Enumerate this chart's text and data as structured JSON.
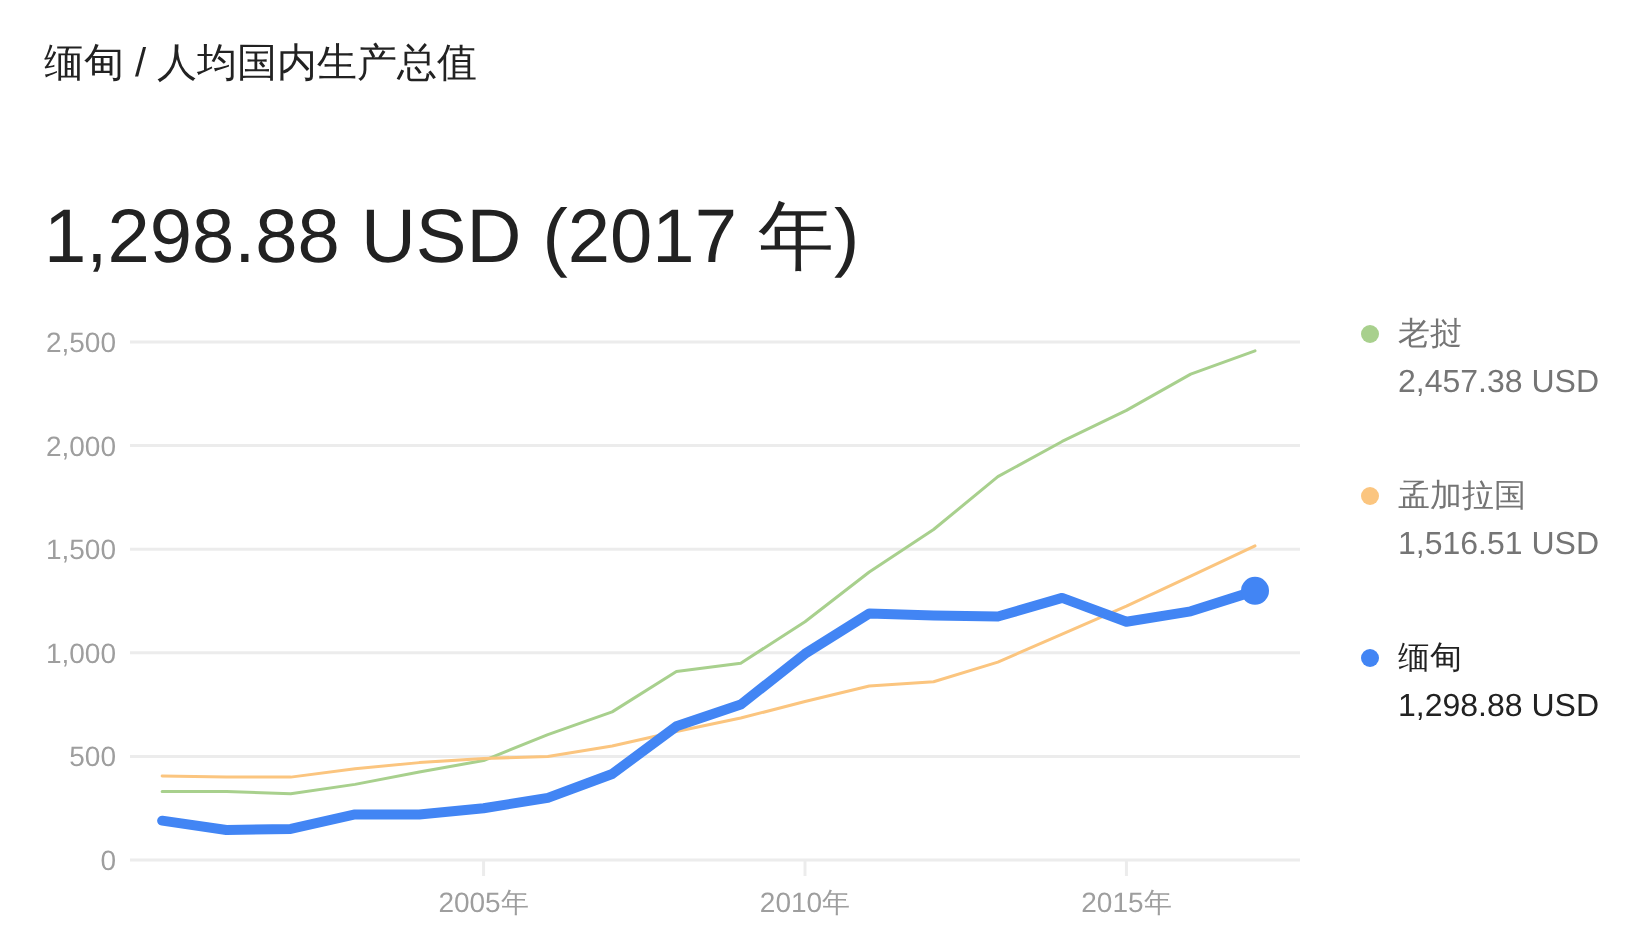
{
  "chart_data": {
    "type": "line",
    "title": "缅甸 / 人均国内生产总值",
    "subtitle": "1,298.88 USD (2017 年)",
    "x": [
      2000,
      2001,
      2002,
      2003,
      2004,
      2005,
      2006,
      2007,
      2008,
      2009,
      2010,
      2011,
      2012,
      2013,
      2014,
      2015,
      2016,
      2017
    ],
    "series": [
      {
        "name": "老挝",
        "color": "#a8d08d",
        "values": [
          330,
          330,
          320,
          365,
          425,
          480,
          605,
          715,
          910,
          950,
          1150,
          1390,
          1595,
          1850,
          2020,
          2170,
          2345,
          2457.38
        ]
      },
      {
        "name": "孟加拉国",
        "color": "#fbc57f",
        "values": [
          405,
          400,
          400,
          440,
          470,
          490,
          500,
          550,
          620,
          685,
          765,
          840,
          860,
          955,
          1090,
          1225,
          1370,
          1516.51
        ]
      },
      {
        "name": "缅甸",
        "color": "#4285f4",
        "values": [
          190,
          145,
          150,
          220,
          220,
          250,
          300,
          415,
          645,
          750,
          995,
          1190,
          1180,
          1175,
          1265,
          1150,
          1200,
          1298.88
        ]
      },
      {
        "type": "scatter",
        "color": "#4285f4",
        "x": [
          2017
        ],
        "values": [
          1298.88
        ]
      }
    ],
    "annotations": [
      "2,457.38 USD",
      "1,516.51 USD",
      "1,298.88 USD"
    ],
    "xlim": [
      1999.5,
      2017.7
    ],
    "ylim": [
      0,
      2500
    ],
    "xticks": [
      {
        "value": 2005,
        "label": "2005年"
      },
      {
        "value": 2010,
        "label": "2010年"
      },
      {
        "value": 2015,
        "label": "2015年"
      }
    ],
    "yticks": [
      0,
      500,
      {
        "value": 1000,
        "label": "1,000"
      },
      {
        "value": 1500,
        "label": "1,500"
      },
      {
        "value": 2000,
        "label": "2,000"
      },
      {
        "value": 2500,
        "label": "2,500"
      }
    ],
    "grid": "y",
    "legend": "right"
  }
}
